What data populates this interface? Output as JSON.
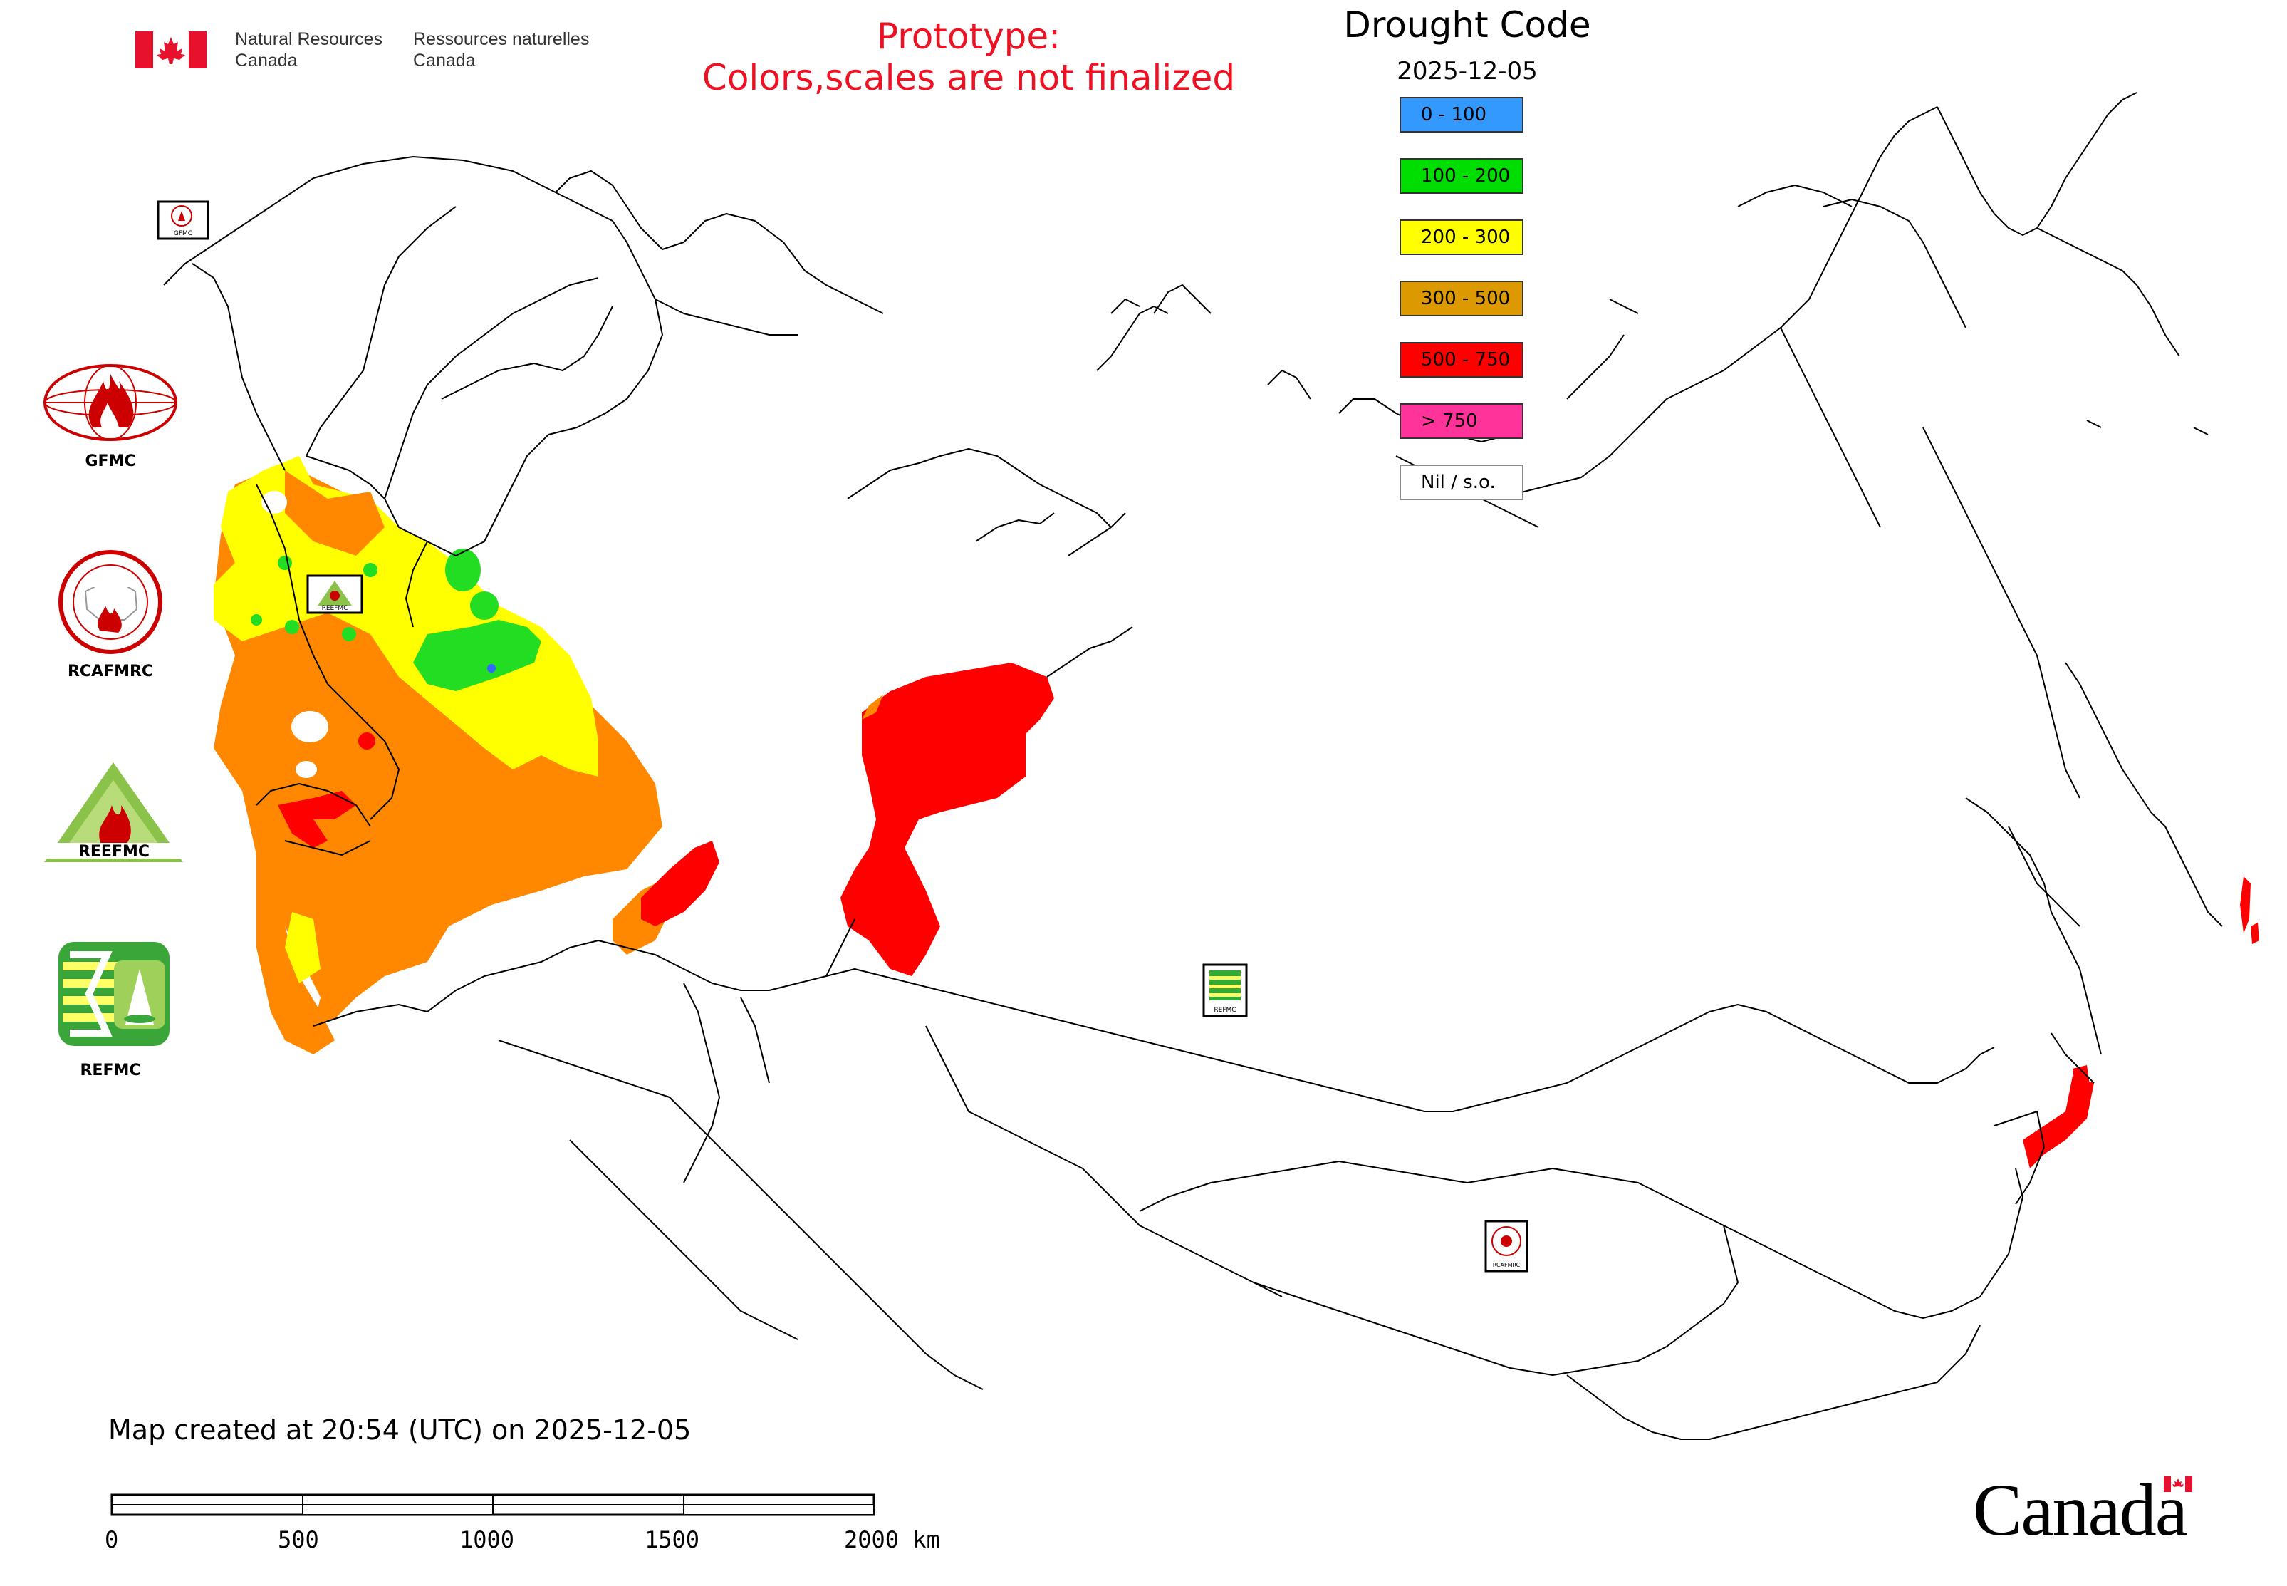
{
  "header": {
    "dept_en_line1": "Natural Resources",
    "dept_en_line2": "Canada",
    "dept_fr_line1": "Ressources naturelles",
    "dept_fr_line2": "Canada",
    "prototype_line1": "Prototype:",
    "prototype_line2": "Colors,scales are not finalized"
  },
  "legend": {
    "title": "Drought Code",
    "date": "2025-12-05",
    "items": [
      {
        "label": "0 - 100",
        "color": "#3399ff"
      },
      {
        "label": "100 - 200",
        "color": "#00dd00"
      },
      {
        "label": "200 - 300",
        "color": "#ffff00"
      },
      {
        "label": "300 - 500",
        "color": "#dd9900"
      },
      {
        "label": "500 - 750",
        "color": "#ff0000"
      },
      {
        "label": "> 750",
        "color": "#ff3399"
      },
      {
        "label": "Nil / s.o.",
        "color": "#ffffff"
      }
    ]
  },
  "organizations": [
    {
      "label": "GFMC",
      "icon": "gfmc-logo"
    },
    {
      "label": "RCAFMRC",
      "icon": "rcafmrc-logo"
    },
    {
      "label": "REEFMC",
      "icon": "reefmc-logo"
    },
    {
      "label": "REFMC",
      "icon": "refmc-logo"
    }
  ],
  "map_logo_labels": {
    "gfmc": "GFMC",
    "reefmc": "REEFMC",
    "refmc": "REFMC",
    "rcafmrc": "RCAFMRC"
  },
  "footer": {
    "created": "Map created at 20:54 (UTC) on 2025-12-05",
    "scale_labels": [
      "0",
      "500",
      "1000",
      "1500",
      "2000 km"
    ],
    "canada_wordmark": "Canada"
  },
  "colors": {
    "prototype_text": "#ee1122",
    "orange": "#ff8800",
    "yellow": "#ffff00",
    "green": "#22dd22",
    "red": "#ff0000",
    "blue": "#3366ff"
  }
}
